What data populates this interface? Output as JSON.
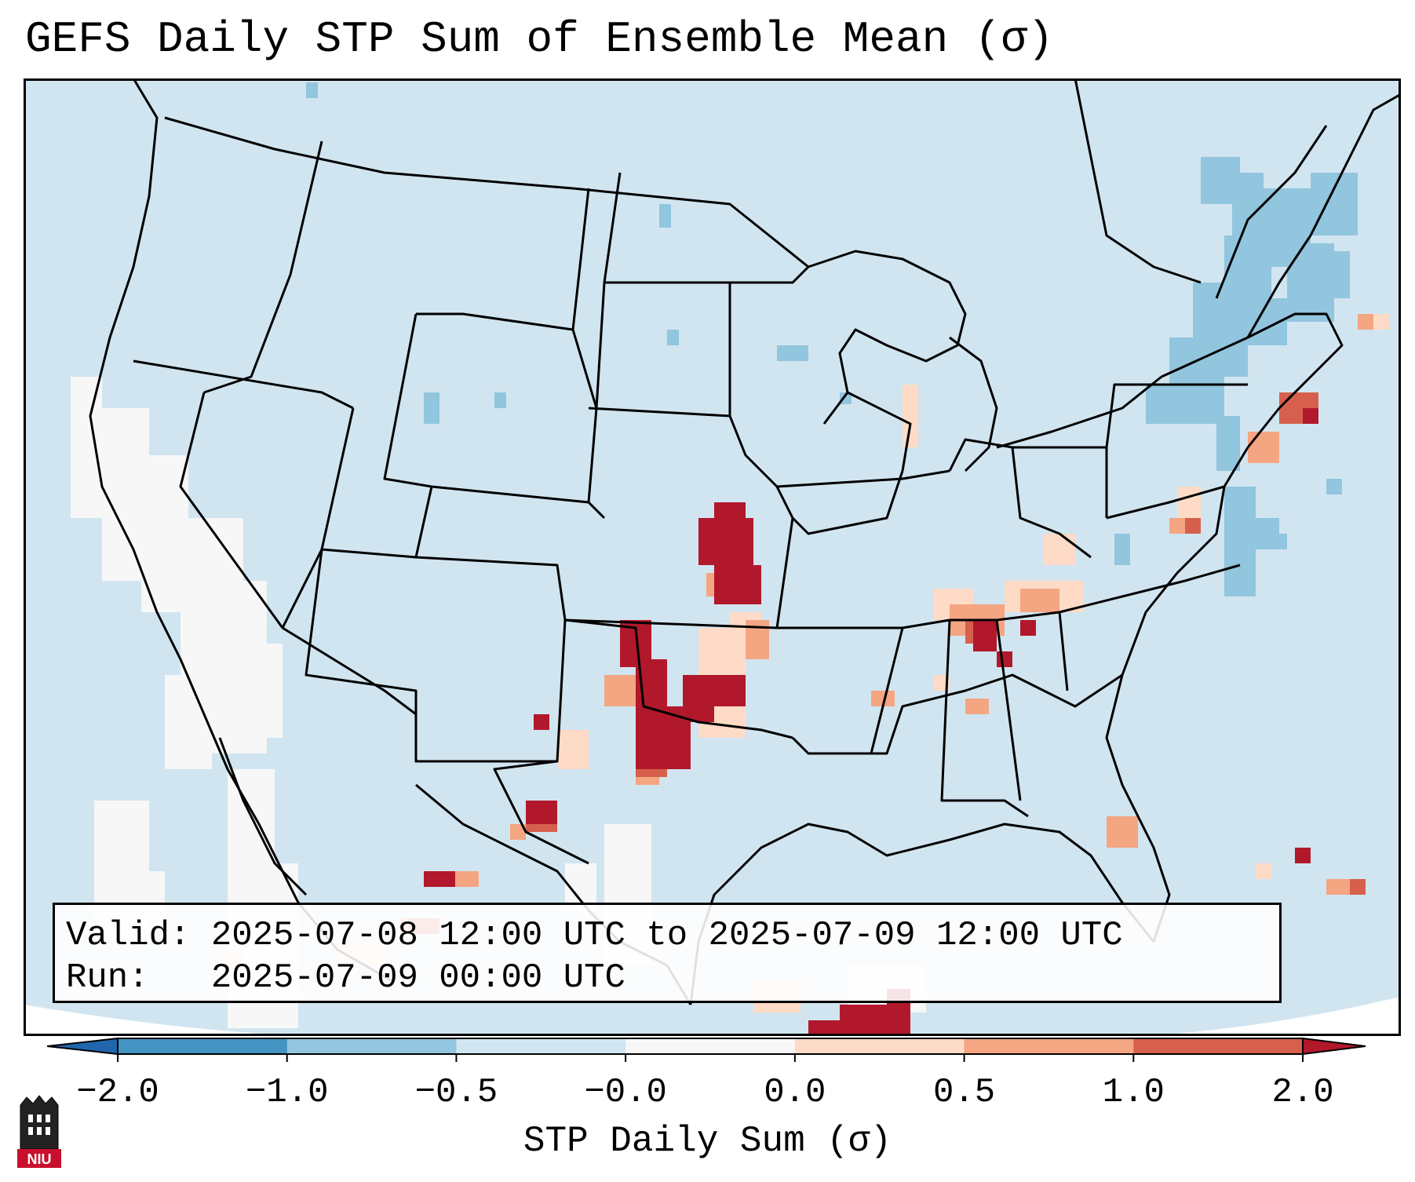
{
  "title": "GEFS Daily STP Sum of Ensemble Mean (σ)",
  "info": {
    "valid": "Valid: 2025-07-08 12:00 UTC to 2025-07-09 12:00 UTC",
    "run": "Run:   2025-07-09 00:00 UTC"
  },
  "colorbar": {
    "label": "STP Daily Sum (σ)",
    "ticks": [
      "−2.0",
      "−1.0",
      "−0.5",
      "−0.0",
      "0.0",
      "0.5",
      "1.0",
      "2.0"
    ],
    "colors": [
      "#4393c3",
      "#92c5de",
      "#d1e5f0",
      "#f7f7f7",
      "#fddbc7",
      "#f4a582",
      "#d6604d"
    ],
    "under_color": "#2166ac",
    "over_color": "#b2182b"
  },
  "map": {
    "ocean_color": "#d1e5f0",
    "dry_color": "#f7f7f7",
    "border_color": "#000000"
  },
  "logo": {
    "text": "NIU",
    "color": "#c8102e"
  }
}
